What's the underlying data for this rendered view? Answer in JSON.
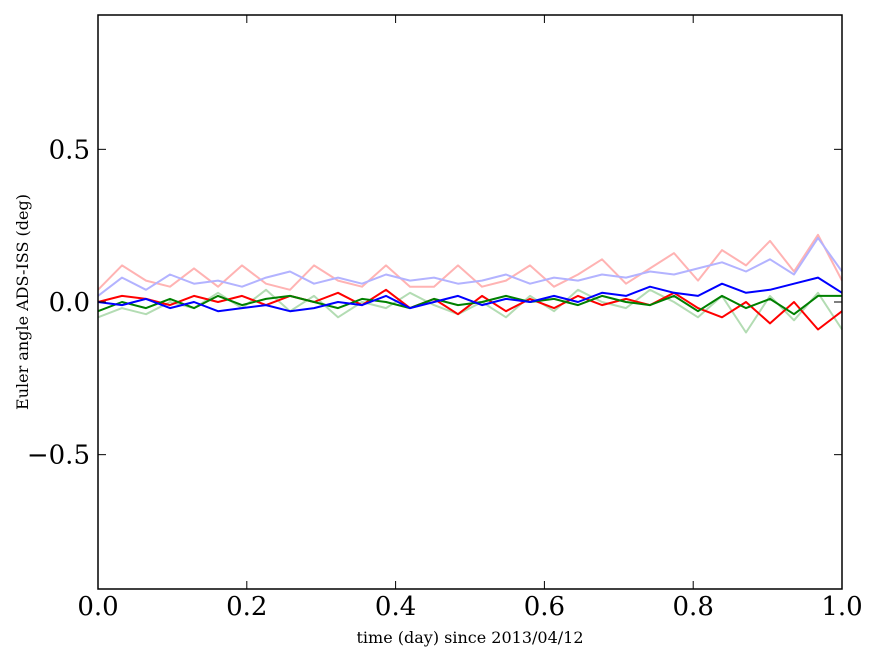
{
  "chart_data": {
    "type": "line",
    "title": "",
    "xlabel": "time (day) since 2013/04/12",
    "ylabel": "Euler angle ADS-ISS (deg)",
    "xlim": [
      0.0,
      1.0
    ],
    "ylim": [
      -0.94,
      0.94
    ],
    "grid": false,
    "legend": "none",
    "x_ticks": [
      {
        "value": 0.0,
        "label": "0.0"
      },
      {
        "value": 0.2,
        "label": "0.2"
      },
      {
        "value": 0.4,
        "label": "0.4"
      },
      {
        "value": 0.6,
        "label": "0.6"
      },
      {
        "value": 0.8,
        "label": "0.8"
      },
      {
        "value": 1.0,
        "label": "1.0"
      }
    ],
    "y_ticks": [
      {
        "value": -0.5,
        "label": "−0.5"
      },
      {
        "value": 0.0,
        "label": "0.0"
      },
      {
        "value": 0.5,
        "label": "0.5"
      }
    ],
    "x": [
      0.0,
      0.0323,
      0.0645,
      0.0968,
      0.129,
      0.1613,
      0.1935,
      0.2258,
      0.2581,
      0.2903,
      0.3226,
      0.3548,
      0.3871,
      0.4194,
      0.4516,
      0.4839,
      0.5161,
      0.5484,
      0.5806,
      0.6129,
      0.6452,
      0.6774,
      0.7097,
      0.7419,
      0.7742,
      0.8065,
      0.8387,
      0.871,
      0.9032,
      0.9355,
      0.9677,
      1.0
    ],
    "series": [
      {
        "color": "#ffb3b3",
        "values": [
          0.04,
          0.12,
          0.07,
          0.05,
          0.11,
          0.05,
          0.12,
          0.06,
          0.04,
          0.12,
          0.07,
          0.05,
          0.12,
          0.05,
          0.05,
          0.12,
          0.05,
          0.07,
          0.12,
          0.05,
          0.09,
          0.14,
          0.06,
          0.11,
          0.16,
          0.07,
          0.17,
          0.12,
          0.2,
          0.1,
          0.22,
          0.07
        ]
      },
      {
        "color": "#b3b3ff",
        "values": [
          0.02,
          0.08,
          0.04,
          0.09,
          0.06,
          0.07,
          0.05,
          0.08,
          0.1,
          0.06,
          0.08,
          0.06,
          0.09,
          0.07,
          0.08,
          0.06,
          0.07,
          0.09,
          0.06,
          0.08,
          0.07,
          0.09,
          0.08,
          0.1,
          0.09,
          0.11,
          0.13,
          0.1,
          0.14,
          0.09,
          0.21,
          0.1
        ]
      },
      {
        "color": "#b3dcb3",
        "values": [
          -0.05,
          -0.02,
          -0.04,
          0.0,
          -0.02,
          0.03,
          -0.02,
          0.04,
          -0.03,
          0.02,
          -0.05,
          0.0,
          -0.02,
          0.03,
          -0.01,
          -0.04,
          0.0,
          -0.05,
          0.02,
          -0.03,
          0.04,
          0.0,
          -0.02,
          0.04,
          0.0,
          -0.05,
          0.02,
          -0.1,
          0.02,
          -0.06,
          0.03,
          -0.09
        ]
      },
      {
        "color": "#ff0000",
        "values": [
          0.0,
          0.02,
          0.01,
          -0.01,
          0.02,
          0.0,
          0.02,
          -0.01,
          0.02,
          0.0,
          0.03,
          -0.01,
          0.04,
          -0.02,
          0.01,
          -0.04,
          0.02,
          -0.03,
          0.01,
          -0.02,
          0.02,
          -0.01,
          0.01,
          -0.01,
          0.03,
          -0.02,
          -0.05,
          0.0,
          -0.07,
          0.0,
          -0.09,
          -0.03
        ]
      },
      {
        "color": "#008000",
        "values": [
          -0.03,
          0.0,
          -0.02,
          0.01,
          -0.02,
          0.02,
          -0.01,
          0.01,
          0.02,
          0.0,
          -0.02,
          0.01,
          0.0,
          -0.02,
          0.01,
          -0.01,
          0.0,
          0.02,
          0.0,
          0.01,
          -0.01,
          0.02,
          0.0,
          -0.01,
          0.02,
          -0.03,
          0.02,
          -0.02,
          0.01,
          -0.04,
          0.02,
          0.02
        ]
      },
      {
        "color": "#0000ff",
        "values": [
          0.0,
          -0.01,
          0.01,
          -0.02,
          0.0,
          -0.03,
          -0.02,
          -0.01,
          -0.03,
          -0.02,
          0.0,
          -0.01,
          0.02,
          -0.02,
          0.0,
          0.02,
          -0.01,
          0.01,
          0.0,
          0.02,
          0.0,
          0.03,
          0.02,
          0.05,
          0.03,
          0.02,
          0.06,
          0.03,
          0.04,
          0.06,
          0.08,
          0.03
        ]
      }
    ]
  }
}
